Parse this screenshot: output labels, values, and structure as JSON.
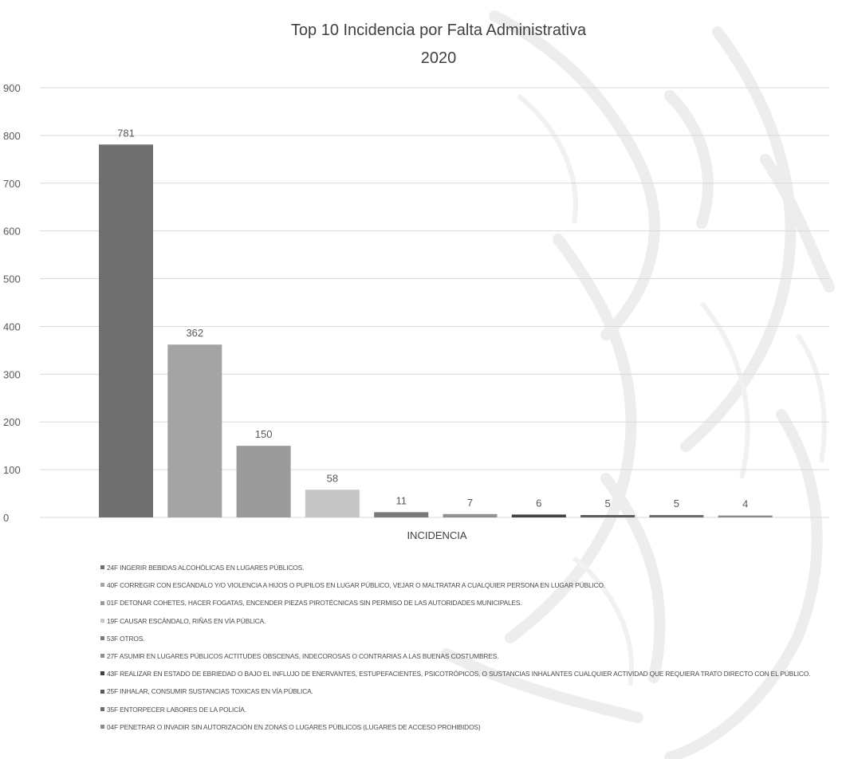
{
  "chart_data": {
    "type": "bar",
    "title": "Top 10 Incidencia por Falta Administrativa",
    "subtitle": "2020",
    "xlabel": "INCIDENCIA",
    "ylabel": "",
    "ylim": [
      0,
      900
    ],
    "yticks": [
      0,
      100,
      200,
      300,
      400,
      500,
      600,
      700,
      800,
      900
    ],
    "grid": true,
    "legend_position": "bottom",
    "categories": [
      "24F INGERIR BEBIDAS ALCOHÓLICAS EN LUGARES PÚBLICOS.",
      "40F CORREGIR CON ESCÁNDALO Y/O VIOLENCIA A HIJOS O PUPILOS EN LUGAR PÚBLICO, VEJAR O MALTRATAR A CUALQUIER PERSONA EN LUGAR PÚBLICO.",
      "01F DETONAR COHETES, HACER FOGATAS, ENCENDER PIEZAS PIROTÉCNICAS SIN PERMISO DE LAS AUTORIDADES MUNICIPALES.",
      "19F CAUSAR ESCÁNDALO, RIÑAS EN VÍA PÚBLICA.",
      "53F OTROS.",
      "27F ASUMIR EN LUGARES PÚBLICOS ACTITUDES OBSCENAS, INDECOROSAS O CONTRARIAS A LAS BUENAS COSTUMBRES.",
      "43F REALIZAR EN ESTADO DE EBRIEDAD O BAJO EL INFLUJO DE ENERVANTES, ESTUPEFACIENTES, PSICOTRÓPICOS, O SUSTANCIAS INHALANTES CUALQUIER ACTIVIDAD QUE REQUIERA TRATO DIRECTO CON EL PÚBLICO.",
      "25F INHALAR, CONSUMIR SUSTANCIAS TOXICAS EN VÍA PÚBLICA.",
      "35F ENTORPECER LABORES DE LA POLICÍA.",
      "04F PENETRAR O INVADIR SIN AUTORIZACIÓN EN ZONAS  O LUGARES PÚBLICOS (LUGARES DE ACCESO PROHIBIDOS)"
    ],
    "values": [
      781,
      362,
      150,
      58,
      11,
      7,
      6,
      5,
      5,
      4
    ],
    "colors": [
      "#707070",
      "#a3a3a3",
      "#9b9b9b",
      "#c6c6c6",
      "#7a7a7a",
      "#909090",
      "#404040",
      "#5a5a5a",
      "#6a6a6a",
      "#8a8a8a"
    ]
  }
}
